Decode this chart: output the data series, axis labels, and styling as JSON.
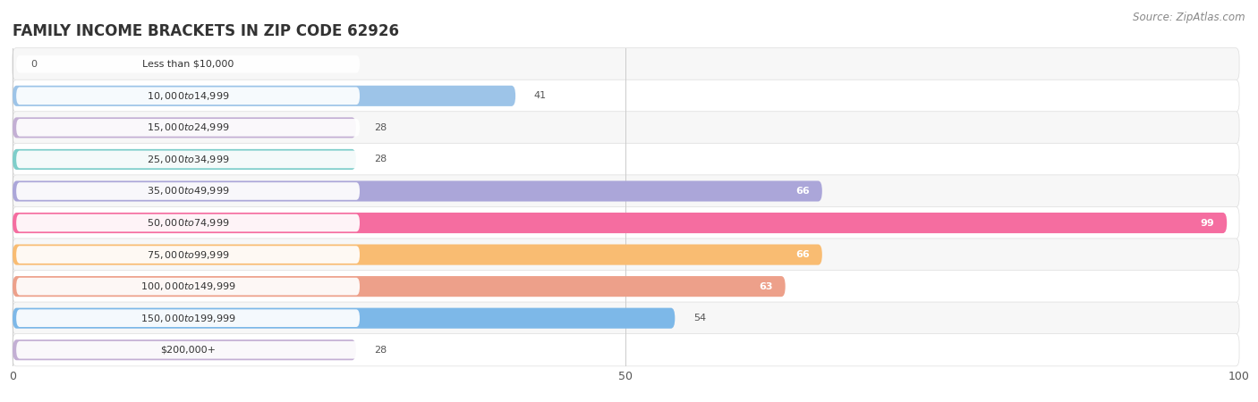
{
  "title": "FAMILY INCOME BRACKETS IN ZIP CODE 62926",
  "source": "Source: ZipAtlas.com",
  "categories": [
    "Less than $10,000",
    "$10,000 to $14,999",
    "$15,000 to $24,999",
    "$25,000 to $34,999",
    "$35,000 to $49,999",
    "$50,000 to $74,999",
    "$75,000 to $99,999",
    "$100,000 to $149,999",
    "$150,000 to $199,999",
    "$200,000+"
  ],
  "values": [
    0,
    41,
    28,
    28,
    66,
    99,
    66,
    63,
    54,
    28
  ],
  "bar_colors": [
    "#f2aaa9",
    "#9dc4e8",
    "#c3afd4",
    "#7ececa",
    "#aba6d9",
    "#f56da0",
    "#f9bc72",
    "#eda08a",
    "#7db8e8",
    "#c3afd4"
  ],
  "xlim": [
    0,
    100
  ],
  "xticks": [
    0,
    50,
    100
  ],
  "background_color": "#ffffff",
  "row_colors": [
    "#f7f7f7",
    "#ffffff"
  ],
  "title_fontsize": 12,
  "source_fontsize": 8.5,
  "label_fontsize": 8,
  "value_fontsize": 8,
  "bar_height": 0.65,
  "value_threshold": 60
}
